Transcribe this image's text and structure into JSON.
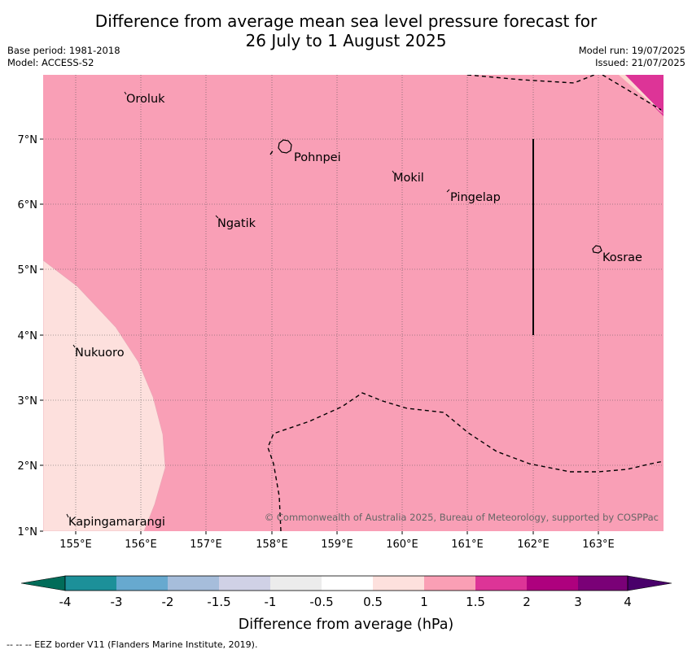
{
  "title": {
    "line1": "Difference from average mean sea level pressure forecast for",
    "line2": "26 July to 1 August 2025"
  },
  "meta": {
    "base_period": "Base period: 1981-2018",
    "model": "Model: ACCESS-S2",
    "model_run": "Model run: 19/07/2025",
    "issued": "Issued: 21/07/2025"
  },
  "map": {
    "lon_ticks": [
      "155°E",
      "156°E",
      "157°E",
      "158°E",
      "159°E",
      "160°E",
      "161°E",
      "162°E",
      "163°E"
    ],
    "lat_ticks": [
      "1°N",
      "2°N",
      "3°N",
      "4°N",
      "5°N",
      "6°N",
      "7°N"
    ],
    "places": [
      {
        "name": "Oroluk"
      },
      {
        "name": "Pohnpei"
      },
      {
        "name": "Mokil"
      },
      {
        "name": "Pingelap"
      },
      {
        "name": "Ngatik"
      },
      {
        "name": "Kosrae"
      },
      {
        "name": "Nukuoro"
      },
      {
        "name": "Kapingamarangi"
      }
    ],
    "copyright": "© Commonwealth of Australia 2025, Bureau of Meteorology, supported by COSPPac",
    "colors": {
      "range_0_5_1": "#fde0dd",
      "range_1_1_5": "#f99fb6",
      "range_1_5_2": "#dd3497"
    }
  },
  "colorbar": {
    "colors": [
      "#1c9099",
      "#67a9cf",
      "#a6bddb",
      "#d0d1e6",
      "#ececec",
      "#ffffff",
      "#fde0dd",
      "#fa9fb5",
      "#dd3497",
      "#ae017e",
      "#7a0177"
    ],
    "low_extend": "#016c59",
    "high_extend": "#49006a",
    "labels": [
      "-4",
      "-3",
      "-2",
      "-1.5",
      "-1",
      "-0.5",
      "0.5",
      "1",
      "1.5",
      "2",
      "3",
      "4"
    ],
    "title": "Difference from average (hPa)"
  },
  "footnote": "--  --  -- EEZ border V11 (Flanders Marine Institute, 2019)."
}
